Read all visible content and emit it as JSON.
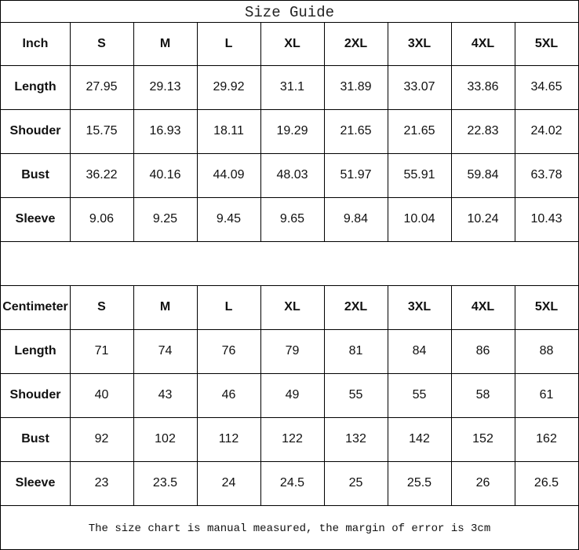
{
  "title": "Size Guide",
  "tables": [
    {
      "unit": "Inch",
      "sizes": [
        "S",
        "M",
        "L",
        "XL",
        "2XL",
        "3XL",
        "4XL",
        "5XL"
      ],
      "rows": [
        {
          "label": "Length",
          "values": [
            "27.95",
            "29.13",
            "29.92",
            "31.1",
            "31.89",
            "33.07",
            "33.86",
            "34.65"
          ]
        },
        {
          "label": "Shouder",
          "values": [
            "15.75",
            "16.93",
            "18.11",
            "19.29",
            "21.65",
            "21.65",
            "22.83",
            "24.02"
          ]
        },
        {
          "label": "Bust",
          "values": [
            "36.22",
            "40.16",
            "44.09",
            "48.03",
            "51.97",
            "55.91",
            "59.84",
            "63.78"
          ]
        },
        {
          "label": "Sleeve",
          "values": [
            "9.06",
            "9.25",
            "9.45",
            "9.65",
            "9.84",
            "10.04",
            "10.24",
            "10.43"
          ]
        }
      ]
    },
    {
      "unit": "Centimeter",
      "sizes": [
        "S",
        "M",
        "L",
        "XL",
        "2XL",
        "3XL",
        "4XL",
        "5XL"
      ],
      "rows": [
        {
          "label": "Length",
          "values": [
            "71",
            "74",
            "76",
            "79",
            "81",
            "84",
            "86",
            "88"
          ]
        },
        {
          "label": "Shouder",
          "values": [
            "40",
            "43",
            "46",
            "49",
            "55",
            "55",
            "58",
            "61"
          ]
        },
        {
          "label": "Bust",
          "values": [
            "92",
            "102",
            "112",
            "122",
            "132",
            "142",
            "152",
            "162"
          ]
        },
        {
          "label": "Sleeve",
          "values": [
            "23",
            "23.5",
            "24",
            "24.5",
            "25",
            "25.5",
            "26",
            "26.5"
          ]
        }
      ]
    }
  ],
  "note": "The size chart is manual measured, the margin of error is 3cm"
}
